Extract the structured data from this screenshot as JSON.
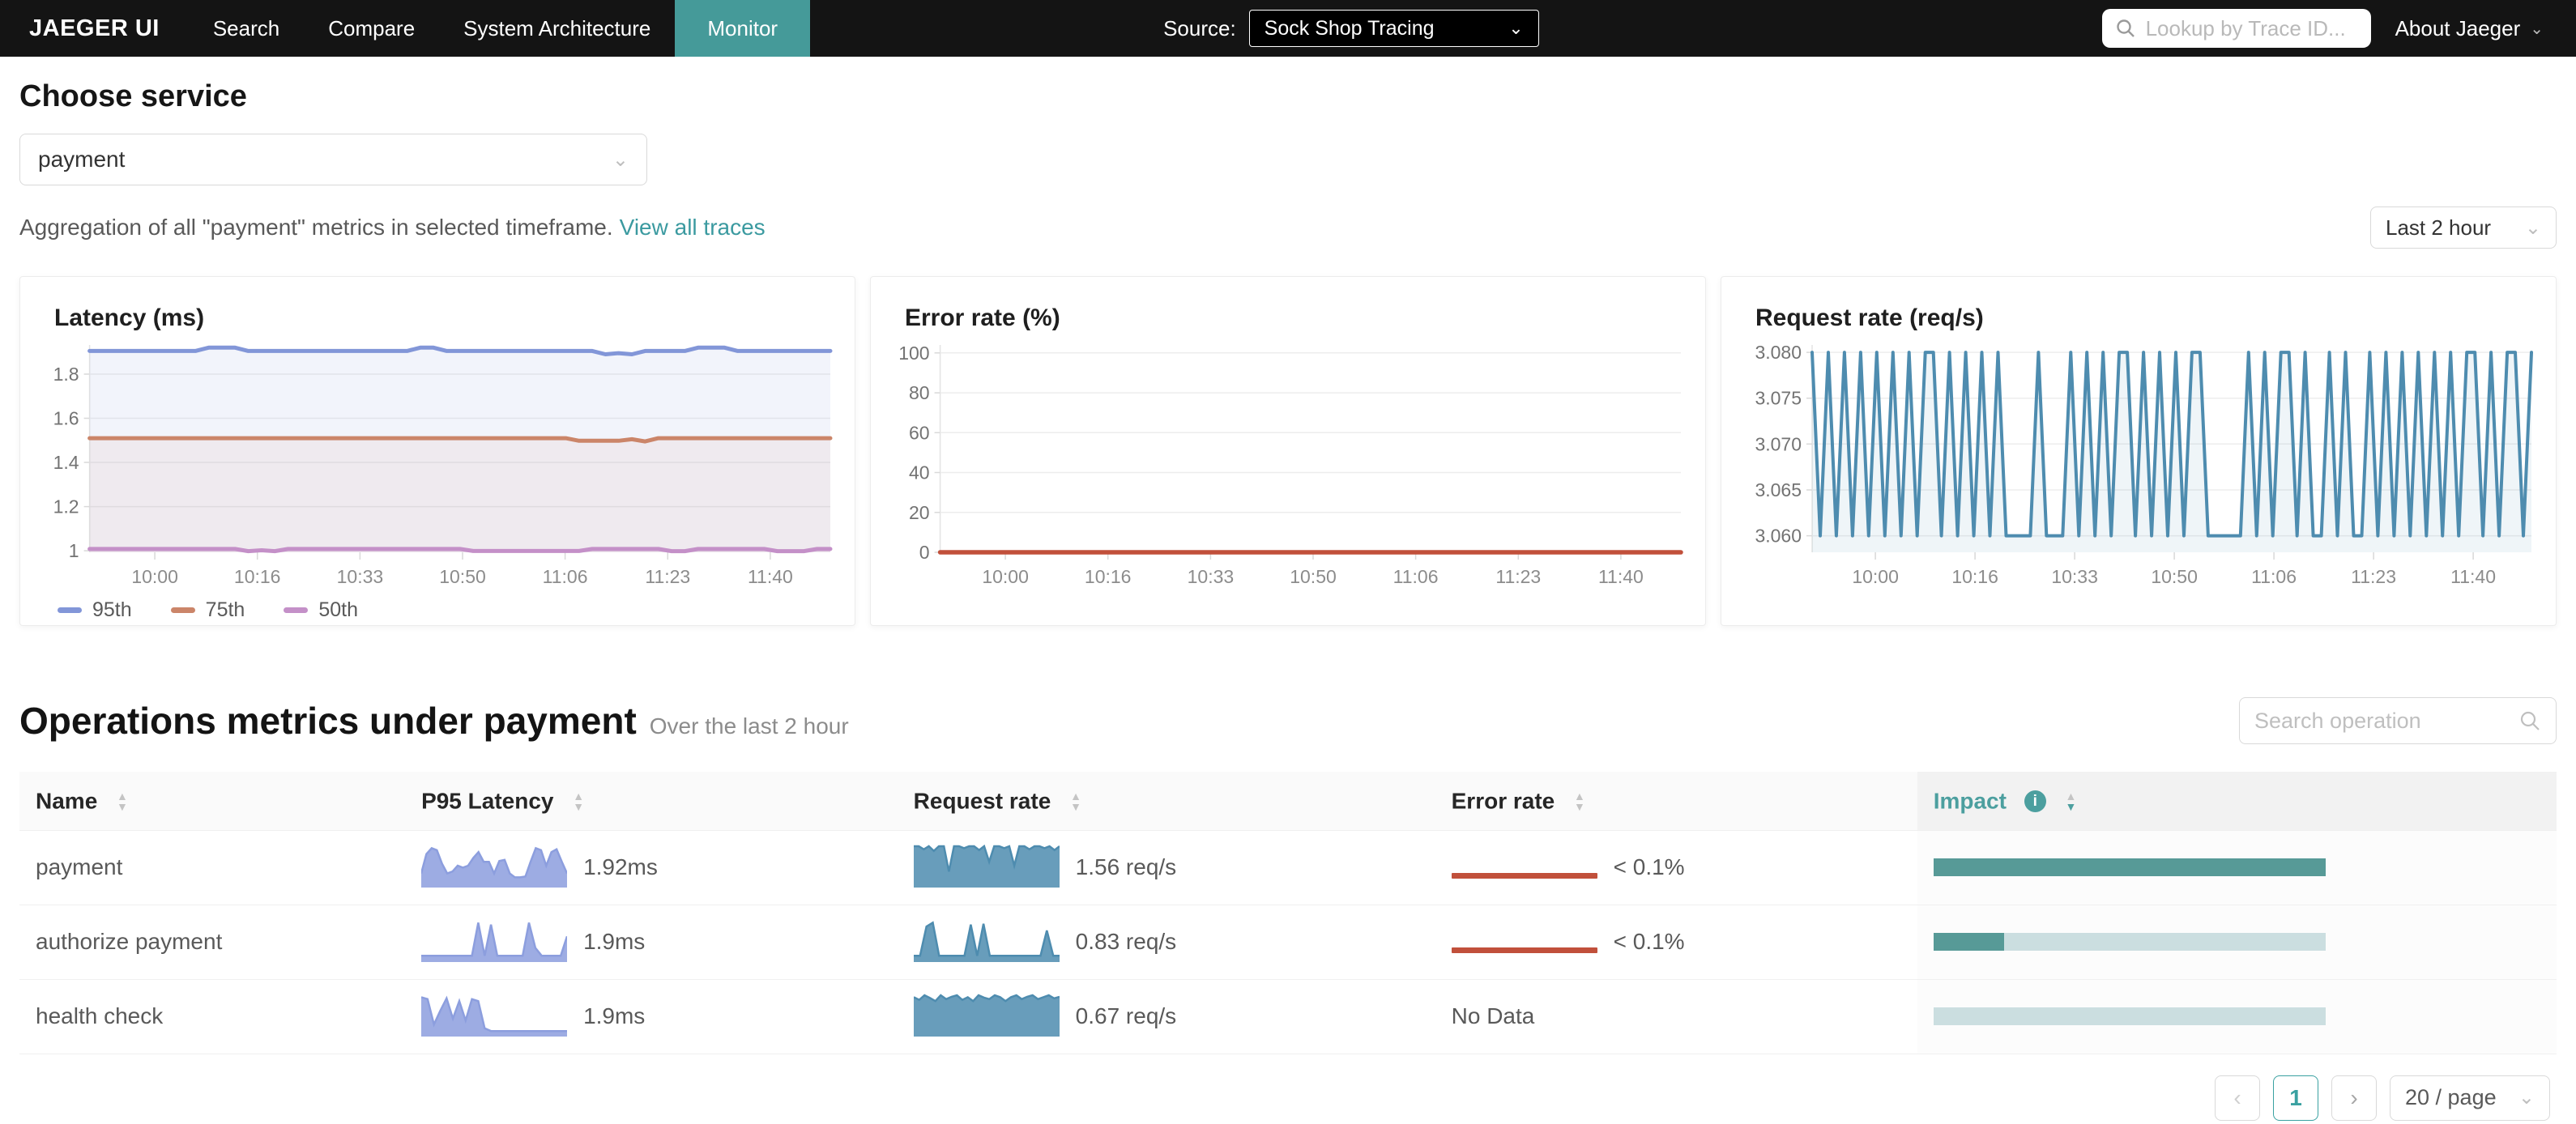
{
  "nav": {
    "brand": "JAEGER UI",
    "items": [
      {
        "label": "Search"
      },
      {
        "label": "Compare"
      },
      {
        "label": "System Architecture"
      },
      {
        "label": "Monitor"
      }
    ],
    "source_label": "Source:",
    "source_value": "Sock Shop Tracing",
    "search_placeholder": "Lookup by Trace ID...",
    "about_label": "About Jaeger"
  },
  "service_section": {
    "title": "Choose service",
    "selected_service": "payment",
    "aggregation_text": "Aggregation of all \"payment\" metrics in selected timeframe.",
    "view_all_traces": "View all traces",
    "timeframe": "Last 2 hour"
  },
  "colors": {
    "accent_teal": "#459a99",
    "link_teal": "#3b9aa0",
    "latency_spark": "#8c9ede",
    "request_spark": "#4e8caf",
    "error_red": "#c1503b",
    "impact_fill": "#579a97",
    "impact_track": "#cbdee0"
  },
  "chart_data": [
    {
      "type": "line",
      "title": "Latency (ms)",
      "x_ticks": [
        "10:00",
        "10:16",
        "10:33",
        "10:50",
        "11:06",
        "11:23",
        "11:40"
      ],
      "y_tick_values": [
        1,
        1.2,
        1.4,
        1.6,
        1.8
      ],
      "y_tick_labels": [
        "1",
        "1.2",
        "1.4",
        "1.6",
        "1.8"
      ],
      "ylim": [
        0.993,
        1.932
      ],
      "legend_position": "bottom-left",
      "series": [
        {
          "name": "95th",
          "color": "#8296d8",
          "width": 5,
          "fill_opacity": 0.1,
          "values": [
            1.905,
            1.905,
            1.905,
            1.905,
            1.905,
            1.905,
            1.905,
            1.905,
            1.905,
            1.92,
            1.92,
            1.92,
            1.905,
            1.905,
            1.905,
            1.905,
            1.905,
            1.905,
            1.905,
            1.905,
            1.905,
            1.905,
            1.905,
            1.905,
            1.905,
            1.92,
            1.92,
            1.905,
            1.905,
            1.905,
            1.905,
            1.905,
            1.905,
            1.905,
            1.905,
            1.905,
            1.905,
            1.905,
            1.905,
            1.89,
            1.895,
            1.89,
            1.905,
            1.905,
            1.905,
            1.905,
            1.92,
            1.92,
            1.92,
            1.905,
            1.905,
            1.905,
            1.905,
            1.905,
            1.905,
            1.905,
            1.905
          ]
        },
        {
          "name": "75th",
          "color": "#cb8569",
          "width": 5,
          "fill_opacity": 0.08,
          "values": [
            1.51,
            1.51,
            1.51,
            1.51,
            1.51,
            1.51,
            1.51,
            1.51,
            1.51,
            1.51,
            1.51,
            1.51,
            1.51,
            1.51,
            1.51,
            1.51,
            1.51,
            1.51,
            1.51,
            1.51,
            1.51,
            1.51,
            1.51,
            1.51,
            1.51,
            1.51,
            1.51,
            1.51,
            1.51,
            1.51,
            1.51,
            1.51,
            1.51,
            1.51,
            1.51,
            1.51,
            1.51,
            1.498,
            1.498,
            1.498,
            1.498,
            1.505,
            1.495,
            1.51,
            1.51,
            1.51,
            1.51,
            1.51,
            1.51,
            1.51,
            1.51,
            1.51,
            1.51,
            1.51,
            1.51,
            1.51,
            1.51
          ]
        },
        {
          "name": "50th",
          "color": "#c490c8",
          "width": 5,
          "fill_opacity": 0.06,
          "values": [
            1.008,
            1.008,
            1.008,
            1.008,
            1.008,
            1.008,
            1.008,
            1.008,
            1.008,
            1.008,
            1.008,
            1.008,
            0.998,
            1.002,
            0.998,
            1.008,
            1.008,
            1.008,
            1.008,
            1.008,
            1.008,
            1.008,
            1.008,
            1.008,
            1.008,
            1.008,
            1.008,
            1.008,
            1.008,
            0.999,
            0.999,
            0.999,
            0.999,
            0.999,
            0.999,
            0.999,
            0.999,
            0.999,
            1.008,
            1.008,
            1.008,
            1.008,
            1.008,
            1.008,
            0.998,
            0.998,
            1.008,
            1.008,
            1.008,
            1.008,
            1.008,
            1.008,
            0.998,
            0.998,
            0.998,
            1.008,
            1.008
          ]
        }
      ]
    },
    {
      "type": "line",
      "title": "Error rate (%)",
      "x_ticks": [
        "10:00",
        "10:16",
        "10:33",
        "10:50",
        "11:06",
        "11:23",
        "11:40"
      ],
      "y_tick_values": [
        0,
        20,
        40,
        60,
        80,
        100
      ],
      "y_tick_labels": [
        "0",
        "20",
        "40",
        "60",
        "80",
        "100"
      ],
      "ylim": [
        0,
        104
      ],
      "series": [
        {
          "name": "error rate",
          "color": "#c1503b",
          "width": 5.5,
          "fill_opacity": 0,
          "values": [
            0,
            0,
            0,
            0,
            0,
            0,
            0,
            0,
            0,
            0,
            0,
            0,
            0,
            0,
            0,
            0,
            0,
            0,
            0,
            0,
            0,
            0,
            0,
            0,
            0,
            0,
            0,
            0,
            0,
            0,
            0,
            0,
            0,
            0,
            0,
            0,
            0,
            0,
            0,
            0,
            0,
            0,
            0,
            0,
            0,
            0,
            0,
            0,
            0,
            0,
            0,
            0,
            0,
            0,
            0,
            0,
            0
          ]
        }
      ]
    },
    {
      "type": "line",
      "title": "Request rate (req/s)",
      "x_ticks": [
        "10:00",
        "10:16",
        "10:33",
        "10:50",
        "11:06",
        "11:23",
        "11:40"
      ],
      "y_tick_values": [
        3.06,
        3.065,
        3.07,
        3.075,
        3.08
      ],
      "y_tick_labels": [
        "3.060",
        "3.065",
        "3.070",
        "3.075",
        "3.080"
      ],
      "ylim": [
        3.0582,
        3.0808
      ],
      "series": [
        {
          "name": "request rate",
          "color": "#4e8caf",
          "width": 4,
          "fill_opacity": 0.09,
          "values": [
            3.08,
            3.06,
            3.08,
            3.06,
            3.08,
            3.06,
            3.08,
            3.06,
            3.08,
            3.06,
            3.08,
            3.06,
            3.08,
            3.06,
            3.08,
            3.08,
            3.06,
            3.08,
            3.06,
            3.08,
            3.06,
            3.08,
            3.06,
            3.08,
            3.06,
            3.06,
            3.06,
            3.06,
            3.08,
            3.06,
            3.06,
            3.06,
            3.08,
            3.06,
            3.08,
            3.06,
            3.08,
            3.06,
            3.08,
            3.08,
            3.06,
            3.08,
            3.06,
            3.08,
            3.06,
            3.08,
            3.06,
            3.08,
            3.08,
            3.06,
            3.06,
            3.06,
            3.06,
            3.06,
            3.08,
            3.06,
            3.08,
            3.06,
            3.08,
            3.08,
            3.06,
            3.08,
            3.06,
            3.06,
            3.08,
            3.06,
            3.08,
            3.06,
            3.06,
            3.08,
            3.06,
            3.08,
            3.06,
            3.08,
            3.06,
            3.08,
            3.06,
            3.08,
            3.06,
            3.08,
            3.06,
            3.08,
            3.08,
            3.06,
            3.08,
            3.06,
            3.08,
            3.08,
            3.06,
            3.08
          ]
        }
      ]
    }
  ],
  "operations": {
    "title": "Operations metrics under payment",
    "subtitle": "Over the last 2 hour",
    "search_placeholder": "Search operation",
    "table": {
      "columns": [
        "Name",
        "P95 Latency",
        "Request rate",
        "Error rate",
        "Impact"
      ],
      "rows": [
        {
          "name": "payment",
          "p95_latency": "1.92ms",
          "request_rate": "1.56 req/s",
          "error_rate": "< 0.1%",
          "has_error_line": true,
          "impact_pct": 100,
          "latency_spark": [
            0.3,
            0.8,
            0.95,
            0.9,
            0.55,
            0.3,
            0.35,
            0.5,
            0.45,
            0.5,
            0.7,
            0.85,
            0.6,
            0.6,
            0.3,
            0.62,
            0.65,
            0.3,
            0.2,
            0.2,
            0.22,
            0.6,
            0.95,
            0.9,
            0.5,
            0.85,
            0.92,
            0.6,
            0.3
          ],
          "request_spark": [
            1,
            1,
            0.92,
            1,
            0.88,
            1,
            1,
            0.35,
            1,
            1,
            0.95,
            1,
            1,
            0.9,
            1,
            0.6,
            1,
            1,
            0.95,
            1,
            0.5,
            1,
            1,
            0.92,
            1,
            1,
            0.95,
            1,
            0.9,
            1
          ]
        },
        {
          "name": "authorize payment",
          "p95_latency": "1.9ms",
          "request_rate": "0.83 req/s",
          "error_rate": "< 0.1%",
          "has_error_line": true,
          "impact_pct": 18,
          "latency_spark": [
            0.1,
            0.1,
            0.1,
            0.1,
            0.1,
            0.1,
            0.1,
            0.1,
            0.1,
            0.95,
            0.1,
            0.9,
            0.1,
            0.1,
            0.1,
            0.1,
            0.1,
            0.95,
            0.3,
            0.1,
            0.1,
            0.1,
            0.1,
            0.6
          ],
          "request_spark": [
            0.1,
            0.1,
            0.85,
            0.95,
            0.1,
            0.1,
            0.1,
            0.1,
            0.1,
            0.9,
            0.1,
            0.92,
            0.1,
            0.1,
            0.1,
            0.1,
            0.1,
            0.1,
            0.1,
            0.1,
            0.1,
            0.75,
            0.1,
            0.1
          ]
        },
        {
          "name": "health check",
          "p95_latency": "1.9ms",
          "request_rate": "0.67 req/s",
          "error_rate": "No Data",
          "has_error_line": false,
          "impact_pct": 0,
          "latency_spark": [
            0.95,
            0.9,
            0.25,
            0.6,
            0.92,
            0.4,
            0.85,
            0.35,
            0.9,
            0.85,
            0.15,
            0.08,
            0.08,
            0.08,
            0.08,
            0.08,
            0.08,
            0.08,
            0.08,
            0.08,
            0.08,
            0.08,
            0.08,
            0.08
          ],
          "request_spark": [
            0.95,
            0.88,
            1,
            0.93,
            0.85,
            1,
            0.9,
            0.96,
            1,
            0.88,
            0.95,
            0.85,
            1,
            0.94,
            0.9,
            1,
            0.95,
            0.85,
            0.95,
            1,
            0.9,
            0.96,
            1,
            0.9,
            0.95,
            1,
            0.92,
            0.96
          ]
        }
      ]
    },
    "pagination": {
      "current_page": "1",
      "page_size": "20 / page"
    }
  }
}
